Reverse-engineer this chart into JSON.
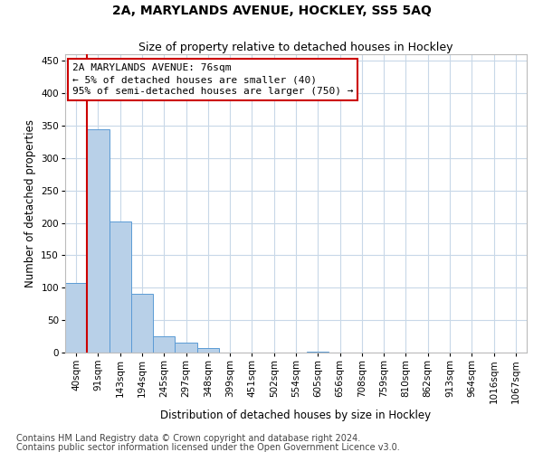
{
  "title": "2A, MARYLANDS AVENUE, HOCKLEY, SS5 5AQ",
  "subtitle": "Size of property relative to detached houses in Hockley",
  "xlabel": "Distribution of detached houses by size in Hockley",
  "ylabel": "Number of detached properties",
  "bar_labels": [
    "40sqm",
    "91sqm",
    "143sqm",
    "194sqm",
    "245sqm",
    "297sqm",
    "348sqm",
    "399sqm",
    "451sqm",
    "502sqm",
    "554sqm",
    "605sqm",
    "656sqm",
    "708sqm",
    "759sqm",
    "810sqm",
    "862sqm",
    "913sqm",
    "964sqm",
    "1016sqm",
    "1067sqm"
  ],
  "bar_values": [
    107,
    345,
    202,
    90,
    25,
    16,
    7,
    0,
    0,
    0,
    0,
    2,
    0,
    0,
    0,
    0,
    0,
    0,
    0,
    0,
    0
  ],
  "bar_color": "#b8d0e8",
  "bar_edge_color": "#5b9bd5",
  "ylim": [
    0,
    460
  ],
  "yticks": [
    0,
    50,
    100,
    150,
    200,
    250,
    300,
    350,
    400,
    450
  ],
  "annotation_text": "2A MARYLANDS AVENUE: 76sqm\n← 5% of detached houses are smaller (40)\n95% of semi-detached houses are larger (750) →",
  "annotation_box_color": "#ffffff",
  "annotation_border_color": "#cc0000",
  "vline_color": "#cc0000",
  "footer1": "Contains HM Land Registry data © Crown copyright and database right 2024.",
  "footer2": "Contains public sector information licensed under the Open Government Licence v3.0.",
  "bg_color": "#ffffff",
  "grid_color": "#c8d8e8",
  "title_fontsize": 10,
  "subtitle_fontsize": 9,
  "axis_label_fontsize": 8.5,
  "tick_fontsize": 7.5,
  "annotation_fontsize": 8,
  "footer_fontsize": 7
}
